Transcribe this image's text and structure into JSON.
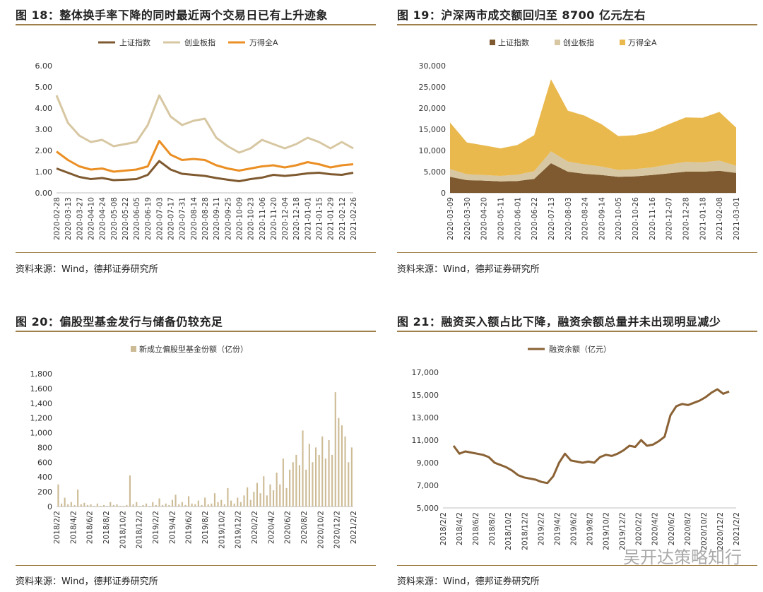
{
  "panels": {
    "p18": {
      "title": "图 18：整体换手率下降的同时最近两个交易日已有上升迹象",
      "source": "资料来源：Wind，德邦证券研究所"
    },
    "p19": {
      "title": "图 19：沪深两市成交额回归至 8700 亿元左右",
      "source": "资料来源：Wind，德邦证券研究所"
    },
    "p20": {
      "title": "图 20：偏股型基金发行与储备仍较充足",
      "source": "资料来源：Wind，德邦证券研究所"
    },
    "p21": {
      "title": "图 21：融资买入额占比下降，融资余额总量并未出现明显减少",
      "source": "资料来源：Wind，德邦证券研究所"
    }
  },
  "watermark": "吴开达策略知行",
  "colors": {
    "brown": "#7f5a30",
    "beige": "#d7c7a2",
    "orange": "#eb8f24",
    "gold": "#e9b94e",
    "rule": "#a0804a"
  },
  "chart_data": [
    {
      "id": "fig18",
      "type": "line",
      "ylim": [
        0,
        6
      ],
      "yticks": [
        "0.00",
        "1.00",
        "2.00",
        "3.00",
        "4.00",
        "5.00",
        "6.00"
      ],
      "x": [
        "2020-02-28",
        "2020-03-13",
        "2020-03-27",
        "2020-04-10",
        "2020-04-24",
        "2020-05-08",
        "2020-05-22",
        "2020-06-05",
        "2020-06-19",
        "2020-07-03",
        "2020-07-17",
        "2020-07-31",
        "2020-08-14",
        "2020-08-28",
        "2020-09-11",
        "2020-09-25",
        "2020-10-09",
        "2020-10-23",
        "2020-11-06",
        "2020-11-20",
        "2020-12-04",
        "2020-12-18",
        "2021-01-01",
        "2021-01-15",
        "2021-01-29",
        "2021-02-12",
        "2021-02-26"
      ],
      "legend": "top",
      "series": [
        {
          "name": "上证指数",
          "color": "#7f5a30",
          "values": [
            1.15,
            0.95,
            0.75,
            0.65,
            0.7,
            0.6,
            0.62,
            0.65,
            0.85,
            1.5,
            1.1,
            0.9,
            0.85,
            0.8,
            0.7,
            0.62,
            0.55,
            0.65,
            0.72,
            0.85,
            0.8,
            0.85,
            0.92,
            0.95,
            0.88,
            0.85,
            0.95
          ]
        },
        {
          "name": "创业板指",
          "color": "#d7c7a2",
          "values": [
            4.6,
            3.3,
            2.7,
            2.4,
            2.5,
            2.2,
            2.3,
            2.4,
            3.2,
            4.6,
            3.6,
            3.2,
            3.4,
            3.5,
            2.6,
            2.2,
            1.9,
            2.1,
            2.5,
            2.3,
            2.1,
            2.3,
            2.6,
            2.4,
            2.1,
            2.4,
            2.1
          ]
        },
        {
          "name": "万得全A",
          "color": "#eb8f24",
          "values": [
            1.95,
            1.55,
            1.25,
            1.1,
            1.15,
            1.0,
            1.05,
            1.1,
            1.25,
            2.45,
            1.8,
            1.55,
            1.6,
            1.55,
            1.3,
            1.15,
            1.05,
            1.15,
            1.25,
            1.3,
            1.2,
            1.3,
            1.45,
            1.35,
            1.2,
            1.3,
            1.35
          ]
        }
      ]
    },
    {
      "id": "fig19",
      "type": "area",
      "stacked": true,
      "ylim": [
        0,
        30000
      ],
      "yticks": [
        "0",
        "5,000",
        "10,000",
        "15,000",
        "20,000",
        "25,000",
        "30,000"
      ],
      "x": [
        "2020-03-09",
        "2020-03-30",
        "2020-04-20",
        "2020-05-11",
        "2020-06-01",
        "2020-06-22",
        "2020-07-13",
        "2020-08-03",
        "2020-08-24",
        "2020-09-14",
        "2020-10-05",
        "2020-10-26",
        "2020-11-16",
        "2020-12-07",
        "2020-12-28",
        "2021-01-18",
        "2021-02-08",
        "2021-03-01"
      ],
      "legend": "top",
      "series": [
        {
          "name": "上证指数",
          "color": "#7f5a30",
          "values": [
            3800,
            3000,
            2900,
            2700,
            2800,
            3300,
            7000,
            5000,
            4500,
            4200,
            3800,
            3900,
            4200,
            4600,
            5000,
            5000,
            5200,
            4700
          ]
        },
        {
          "name": "创业板指",
          "color": "#d7c7a2",
          "values": [
            1800,
            1400,
            1300,
            1300,
            1500,
            1800,
            2800,
            2400,
            2200,
            2000,
            1600,
            1700,
            1800,
            2100,
            2300,
            2200,
            2400,
            1700
          ]
        },
        {
          "name": "万得全A",
          "color": "#e9b94e",
          "values": [
            11000,
            7500,
            7000,
            6500,
            7000,
            8500,
            17000,
            12000,
            11500,
            10000,
            8000,
            8000,
            8500,
            9500,
            10500,
            10500,
            11500,
            9000
          ]
        }
      ]
    },
    {
      "id": "fig20",
      "type": "bar",
      "ylim": [
        0,
        1800
      ],
      "yticks": [
        "0",
        "200",
        "400",
        "600",
        "800",
        "1,000",
        "1,200",
        "1,400",
        "1,600",
        "1,800"
      ],
      "xticks": [
        "2018/2/2",
        "2018/4/2",
        "2018/6/2",
        "2018/8/2",
        "2018/10/2",
        "2018/12/2",
        "2019/2/2",
        "2019/4/2",
        "2019/6/2",
        "2019/8/2",
        "2019/10/2",
        "2019/12/2",
        "2020/2/2",
        "2020/4/2",
        "2020/6/2",
        "2020/8/2",
        "2020/10/2",
        "2020/12/2",
        "2021/2/2"
      ],
      "legend": "top",
      "series": [
        {
          "name": "新成立偏股型基金份额（亿份）",
          "color": "#cdbb95",
          "values": [
            300,
            40,
            120,
            30,
            60,
            20,
            230,
            30,
            50,
            20,
            30,
            10,
            40,
            10,
            20,
            10,
            60,
            20,
            30,
            10,
            10,
            20,
            420,
            30,
            60,
            10,
            20,
            40,
            10,
            60,
            20,
            110,
            20,
            40,
            20,
            90,
            160,
            30,
            60,
            20,
            140,
            40,
            30,
            80,
            20,
            120,
            30,
            40,
            180,
            60,
            90,
            30,
            250,
            80,
            40,
            120,
            60,
            150,
            260,
            90,
            200,
            320,
            180,
            410,
            150,
            300,
            220,
            460,
            300,
            650,
            250,
            500,
            600,
            700,
            560,
            1030,
            500,
            850,
            600,
            800,
            700,
            950,
            650,
            900,
            700,
            1550,
            1200,
            1100,
            950,
            600,
            800
          ]
        }
      ]
    },
    {
      "id": "fig21",
      "type": "line",
      "ylim": [
        5000,
        17000
      ],
      "yticks": [
        "5,000",
        "7,000",
        "9,000",
        "11,000",
        "13,000",
        "15,000",
        "17,000"
      ],
      "xticks": [
        "2018/2/2",
        "2018/4/2",
        "2018/6/2",
        "2018/8/2",
        "2018/10/2",
        "2018/12/2",
        "2019/2/2",
        "2019/4/2",
        "2019/6/2",
        "2019/8/2",
        "2019/10/2",
        "2019/12/2",
        "2020/2/2",
        "2020/4/2",
        "2020/6/2",
        "2020/8/2",
        "2020/10/2",
        "2020/12/2",
        "2021/2/2"
      ],
      "legend": "top",
      "series": [
        {
          "name": "融资余额（亿元）",
          "color": "#8a6235",
          "values": [
            10500,
            9800,
            10000,
            9900,
            9800,
            9700,
            9500,
            9000,
            8800,
            8600,
            8300,
            7900,
            7700,
            7600,
            7500,
            7300,
            7200,
            7800,
            9000,
            9800,
            9200,
            9100,
            9000,
            9100,
            9000,
            9500,
            9700,
            9600,
            9800,
            10100,
            10500,
            10400,
            11000,
            10500,
            10600,
            10900,
            11300,
            13200,
            14000,
            14200,
            14100,
            14300,
            14500,
            14800,
            15200,
            15500,
            15100,
            15300
          ]
        }
      ]
    }
  ]
}
